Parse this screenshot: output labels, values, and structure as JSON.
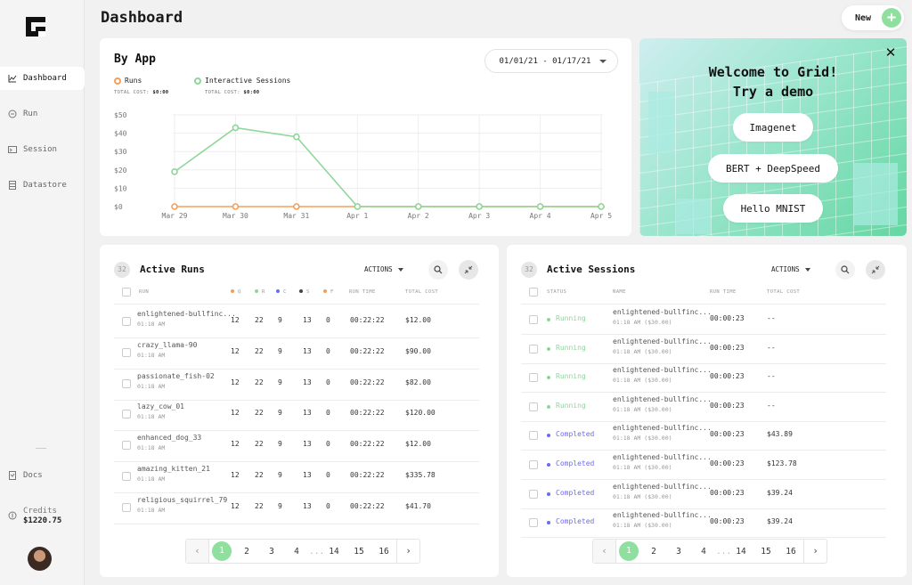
{
  "app": {
    "logo_icon": "grid-logo-icon",
    "title": "Dashboard"
  },
  "header": {
    "new_label": "New"
  },
  "sidebar": {
    "items": [
      {
        "label": "Dashboard",
        "icon": "chart-line-icon",
        "active": true
      },
      {
        "label": "Run",
        "icon": "run-icon"
      },
      {
        "label": "Session",
        "icon": "terminal-icon"
      },
      {
        "label": "Datastore",
        "icon": "database-icon"
      }
    ],
    "docs_label": "Docs",
    "credits_label": "Credits",
    "credits_value": "$1220.75"
  },
  "by_app": {
    "title": "By App",
    "date_range": "01/01/21 - 01/17/21",
    "legend": [
      {
        "label": "Runs",
        "cost_label": "TOTAL COST:",
        "cost_value": "$0:00",
        "color": "#f59e5a"
      },
      {
        "label": "Interactive Sessions",
        "cost_label": "TOTAL COST:",
        "cost_value": "$0:00",
        "color": "#8fd69a"
      }
    ]
  },
  "chart_data": {
    "type": "line",
    "x": [
      "Mar 29",
      "Mar 30",
      "Mar 31",
      "Apr 1",
      "Apr 2",
      "Apr 3",
      "Apr 4",
      "Apr 5"
    ],
    "y_ticks": [
      "$50",
      "$40",
      "$30",
      "$20",
      "$10",
      "$0"
    ],
    "ylim": [
      0,
      50
    ],
    "grid": true,
    "series": [
      {
        "name": "Runs",
        "color": "#f59e5a",
        "values": [
          0,
          0,
          0,
          0,
          0,
          0,
          0,
          0
        ]
      },
      {
        "name": "Interactive Sessions",
        "color": "#8fd69a",
        "values": [
          19,
          43,
          38,
          0,
          0,
          0,
          0,
          0
        ]
      }
    ]
  },
  "promo": {
    "title_line1": "Welcome to Grid!",
    "title_line2": "Try a demo",
    "buttons": [
      "Imagenet",
      "BERT + DeepSpeed",
      "Hello MNIST"
    ]
  },
  "runs": {
    "count": "32",
    "title": "Active Runs",
    "actions_label": "ACTIONS",
    "headers": [
      "RUN",
      "Q",
      "R",
      "C",
      "S",
      "F",
      "RUN TIME",
      "TOTAL COST"
    ],
    "status_colors": [
      "#f59e5a",
      "#8fd69a",
      "#6b6bf0",
      "#444444",
      "#f59e5a"
    ],
    "rows": [
      {
        "name": "enlightened-bullfinc...",
        "time": "01:18 AM",
        "q": "12",
        "r": "22",
        "c": "9",
        "s": "13",
        "f": "0",
        "runtime": "00:22:22",
        "cost": "$12.00"
      },
      {
        "name": "crazy_llama-90",
        "time": "01:18 AM",
        "q": "12",
        "r": "22",
        "c": "9",
        "s": "13",
        "f": "0",
        "runtime": "00:22:22",
        "cost": "$90.00"
      },
      {
        "name": "passionate_fish-02",
        "time": "01:18 AM",
        "q": "12",
        "r": "22",
        "c": "9",
        "s": "13",
        "f": "0",
        "runtime": "00:22:22",
        "cost": "$82.00"
      },
      {
        "name": "lazy_cow_01",
        "time": "01:18 AM",
        "q": "12",
        "r": "22",
        "c": "9",
        "s": "13",
        "f": "0",
        "runtime": "00:22:22",
        "cost": "$120.00"
      },
      {
        "name": "enhanced_dog_33",
        "time": "01:18 AM",
        "q": "12",
        "r": "22",
        "c": "9",
        "s": "13",
        "f": "0",
        "runtime": "00:22:22",
        "cost": "$12.00"
      },
      {
        "name": "amazing_kitten_21",
        "time": "01:18 AM",
        "q": "12",
        "r": "22",
        "c": "9",
        "s": "13",
        "f": "0",
        "runtime": "00:22:22",
        "cost": "$335.78"
      },
      {
        "name": "religious_squirrel_79",
        "time": "01:18 AM",
        "q": "12",
        "r": "22",
        "c": "9",
        "s": "13",
        "f": "0",
        "runtime": "00:22:22",
        "cost": "$41.70"
      }
    ],
    "pages": [
      "1",
      "2",
      "3",
      "4",
      "...",
      "14",
      "15",
      "16"
    ]
  },
  "sessions": {
    "count": "32",
    "title": "Active Sessions",
    "actions_label": "ACTIONS",
    "headers": [
      "STATUS",
      "NAME",
      "RUN TIME",
      "TOTAL COST"
    ],
    "rows": [
      {
        "status": "Running",
        "color": "#8fd69a",
        "name": "enlightened-bullfinc...",
        "sub": "01:18 AM ($30.00)",
        "runtime": "00:00:23",
        "cost": "--"
      },
      {
        "status": "Running",
        "color": "#8fd69a",
        "name": "enlightened-bullfinc...",
        "sub": "01:18 AM ($30.00)",
        "runtime": "00:00:23",
        "cost": "--"
      },
      {
        "status": "Running",
        "color": "#8fd69a",
        "name": "enlightened-bullfinc...",
        "sub": "01:18 AM ($30.00)",
        "runtime": "00:00:23",
        "cost": "--"
      },
      {
        "status": "Running",
        "color": "#8fd69a",
        "name": "enlightened-bullfinc...",
        "sub": "01:18 AM ($30.00)",
        "runtime": "00:00:23",
        "cost": "--"
      },
      {
        "status": "Completed",
        "color": "#6b6bf0",
        "name": "enlightened-bullfinc...",
        "sub": "01:18 AM ($30.00)",
        "runtime": "00:00:23",
        "cost": "$43.89"
      },
      {
        "status": "Completed",
        "color": "#6b6bf0",
        "name": "enlightened-bullfinc...",
        "sub": "01:18 AM ($30.00)",
        "runtime": "00:00:23",
        "cost": "$123.78"
      },
      {
        "status": "Completed",
        "color": "#6b6bf0",
        "name": "enlightened-bullfinc...",
        "sub": "01:18 AM ($30.00)",
        "runtime": "00:00:23",
        "cost": "$39.24"
      },
      {
        "status": "Completed",
        "color": "#6b6bf0",
        "name": "enlightened-bullfinc...",
        "sub": "01:18 AM ($30.00)",
        "runtime": "00:00:23",
        "cost": "$39.24"
      }
    ],
    "pages": [
      "1",
      "2",
      "3",
      "4",
      "...",
      "14",
      "15",
      "16"
    ]
  }
}
